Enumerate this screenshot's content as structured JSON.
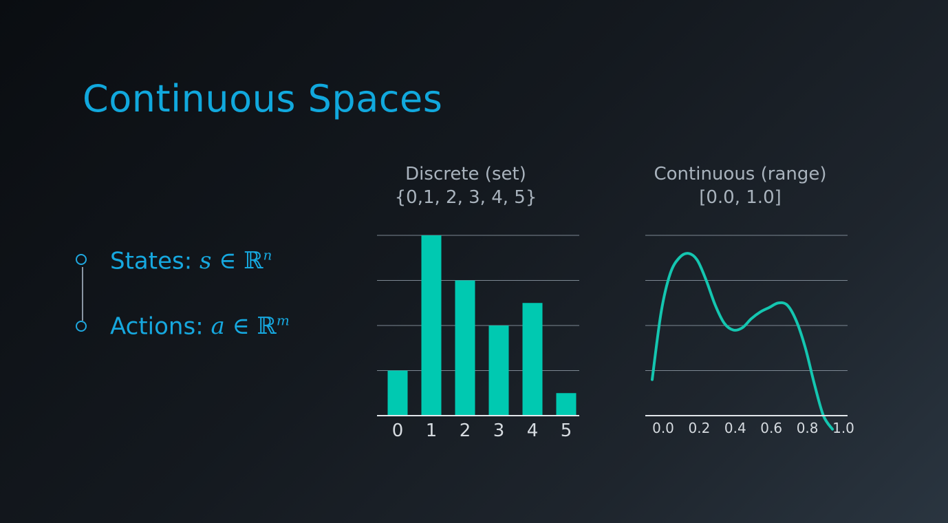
{
  "slide": {
    "title": "Continuous Spaces",
    "states_label": "States:",
    "actions_label": "Actions:",
    "states_math": {
      "var": "s",
      "in": "∈",
      "set": "ℝ",
      "exp": "n"
    },
    "actions_math": {
      "var": "a",
      "in": "∈",
      "set": "ℝ",
      "exp": "m"
    }
  },
  "colors": {
    "accent": "#11a8dd",
    "bar": "#00c9b1",
    "curve": "#14c6b0",
    "grid": "#7d8893",
    "muted_text": "#a9b3bd"
  },
  "chart_data": [
    {
      "type": "bar",
      "title": "Discrete (set)",
      "subtitle": "{0,1, 2, 3, 4, 5}",
      "categories": [
        "0",
        "1",
        "2",
        "3",
        "4",
        "5"
      ],
      "values": [
        1.0,
        4.0,
        3.0,
        2.0,
        2.5,
        0.5
      ],
      "ylim": [
        0,
        4
      ],
      "grid": true,
      "legend": "none"
    },
    {
      "type": "line",
      "title": "Continuous (range)",
      "subtitle": "[0.0, 1.0]",
      "x": [
        0.0,
        0.05,
        0.1,
        0.15,
        0.2,
        0.25,
        0.3,
        0.35,
        0.4,
        0.45,
        0.5,
        0.55,
        0.6,
        0.65,
        0.7,
        0.75,
        0.8,
        0.85,
        0.9,
        0.95,
        1.0
      ],
      "y": [
        0.8,
        2.3,
        3.15,
        3.5,
        3.6,
        3.45,
        3.0,
        2.45,
        2.05,
        1.9,
        1.95,
        2.15,
        2.3,
        2.4,
        2.5,
        2.45,
        2.1,
        1.5,
        0.7,
        0.0,
        -0.3
      ],
      "x_ticks": [
        "0.0",
        "0.2",
        "0.4",
        "0.6",
        "0.8",
        "1.0"
      ],
      "ylim": [
        0,
        4
      ],
      "grid": true,
      "legend": "none"
    }
  ]
}
